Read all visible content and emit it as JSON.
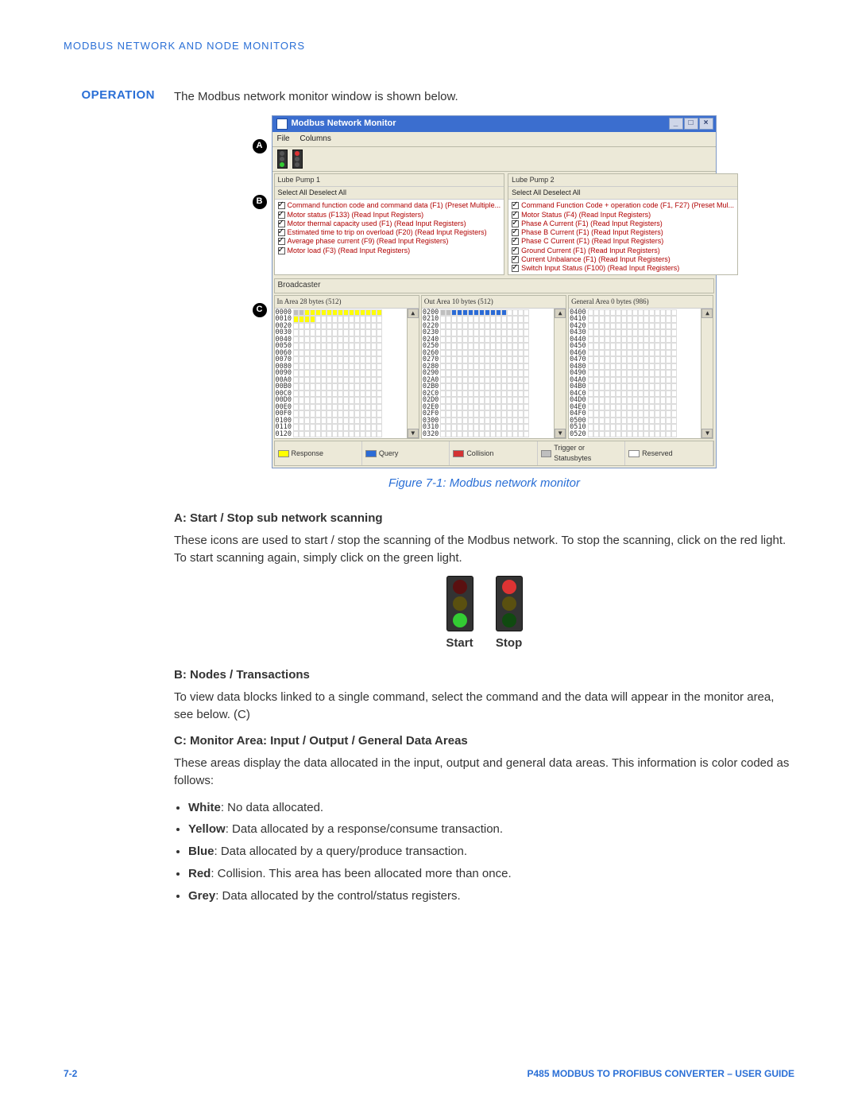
{
  "header": "MODBUS NETWORK AND NODE MONITORS",
  "operation": {
    "label": "OPERATION",
    "intro": "The Modbus network monitor window is shown below."
  },
  "window": {
    "title": "Modbus Network Monitor",
    "menus": [
      "File",
      "Columns"
    ],
    "pane_left": {
      "title": "Lube Pump 1",
      "sub": "Select All   Deselect All",
      "items": [
        "Command function code and command data (F1) (Preset Multiple...",
        "Motor status (F133) (Read Input Registers)",
        "Motor thermal capacity used (F1) (Read Input Registers)",
        "Estimated time to trip on overload (F20) (Read Input Registers)",
        "Average phase current (F9) (Read Input Registers)",
        "Motor load (F3) (Read Input Registers)"
      ]
    },
    "pane_right": {
      "title": "Lube Pump 2",
      "sub": "Select All   Deselect All",
      "items": [
        "Command Function Code + operation code (F1, F27) (Preset Mul...",
        "Motor Status (F4) (Read Input Registers)",
        "Phase A Current (F1) (Read Input Registers)",
        "Phase B Current (F1) (Read Input Registers)",
        "Phase C Current (F1) (Read Input Registers)",
        "Ground Current (F1) (Read Input Registers)",
        "Current Unbalance (F1) (Read Input Registers)",
        "Switch Input Status (F100) (Read Input Registers)"
      ]
    },
    "broadcast_label": "Broadcaster",
    "areas": {
      "in": {
        "label": "In Area 28 bytes (512)",
        "base": "0000",
        "yellow_cells": 18,
        "grey_cells": 2
      },
      "out": {
        "label": "Out Area 10 bytes (512)",
        "base": "0200",
        "blue_cells": 10,
        "grey_cells": 2
      },
      "gen": {
        "label": "General Area 0 bytes (986)",
        "base": "0400",
        "filled": 0
      }
    },
    "addr_rows": [
      "0000",
      "0010",
      "0020",
      "0030",
      "0040",
      "0050",
      "0060",
      "0070",
      "0080",
      "0090",
      "00A0",
      "00B0",
      "00C0",
      "00D0",
      "00E0",
      "00F0",
      "0100",
      "0110",
      "0120"
    ],
    "addr_rows_out": [
      "0200",
      "0210",
      "0220",
      "0230",
      "0240",
      "0250",
      "0260",
      "0270",
      "0280",
      "0290",
      "02A0",
      "02B0",
      "02C0",
      "02D0",
      "02E0",
      "02F0",
      "0300",
      "0310",
      "0320"
    ],
    "addr_rows_gen": [
      "0400",
      "0410",
      "0420",
      "0430",
      "0440",
      "0450",
      "0460",
      "0470",
      "0480",
      "0490",
      "04A0",
      "04B0",
      "04C0",
      "04D0",
      "04E0",
      "04F0",
      "0500",
      "0510",
      "0520"
    ],
    "legend": [
      "Response",
      "Query",
      "Collision",
      "Trigger or Statusbytes",
      "Reserved"
    ],
    "legend_colors": [
      "#ffff00",
      "#2b6bd6",
      "#d33333",
      "#bfbfbf",
      "#ffffff"
    ]
  },
  "caption": "Figure 7-1: Modbus network monitor",
  "section_a": {
    "heading": "A: Start / Stop sub network scanning",
    "text": "These icons are used to start / stop the scanning of the Modbus network. To stop the scanning, click on the red light. To start scanning again, simply click on the green light.",
    "start_label": "Start",
    "stop_label": "Stop"
  },
  "section_b": {
    "heading": "B: Nodes / Transactions",
    "text": "To view data blocks linked to a single command, select the command and the data will appear in the monitor area, see below. (C)"
  },
  "section_c": {
    "heading": "C: Monitor Area: Input / Output / General Data Areas",
    "text": "These areas display the data allocated in the input, output and general data areas. This information is color coded as follows:",
    "bullets": [
      {
        "bold": "White",
        "rest": ": No data allocated."
      },
      {
        "bold": "Yellow",
        "rest": ": Data allocated by a response/consume transaction."
      },
      {
        "bold": "Blue",
        "rest": ": Data allocated by a query/produce transaction."
      },
      {
        "bold": "Red",
        "rest": ": Collision. This area has been allocated more than once."
      },
      {
        "bold": "Grey",
        "rest": ": Data allocated by the control/status registers."
      }
    ]
  },
  "footer": {
    "left": "7-2",
    "right": "P485 MODBUS TO PROFIBUS CONVERTER – USER GUIDE"
  },
  "callout_labels": [
    "A",
    "B",
    "C"
  ]
}
